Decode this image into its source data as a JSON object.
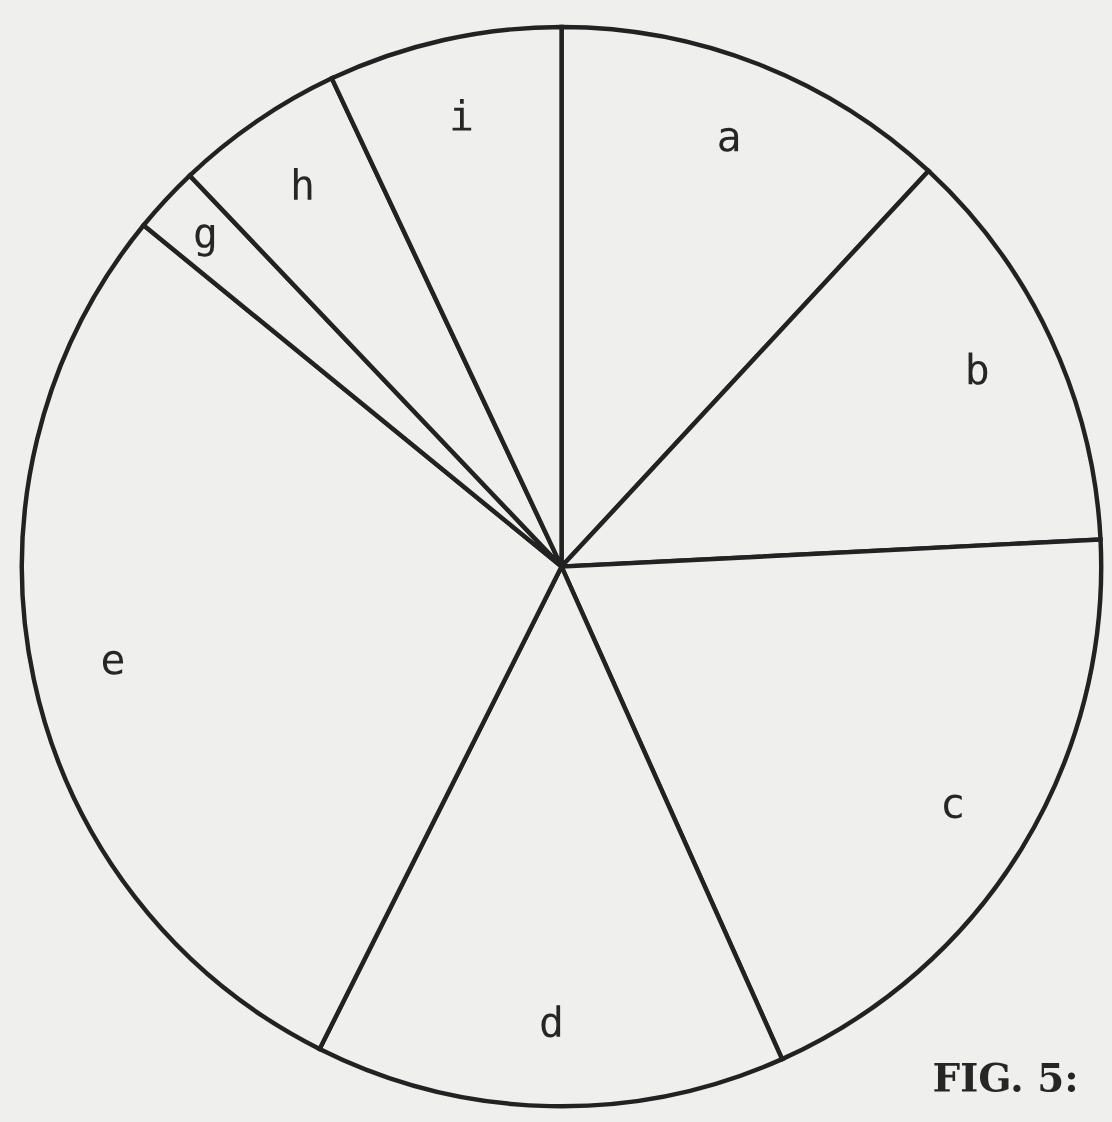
{
  "chart_data": {
    "type": "pie",
    "categories": [
      "a",
      "b",
      "c",
      "d",
      "e",
      "g",
      "h",
      "i"
    ],
    "values": [
      11.9,
      12.3,
      19.1,
      14.1,
      28.5,
      2.0,
      5.1,
      7.0
    ],
    "colors": [
      "#efefed",
      "#efefed",
      "#efefed",
      "#efefed",
      "#efefed",
      "#efefed",
      "#efefed",
      "#efefed"
    ],
    "annotations": [
      "FIG. 5:"
    ]
  }
}
